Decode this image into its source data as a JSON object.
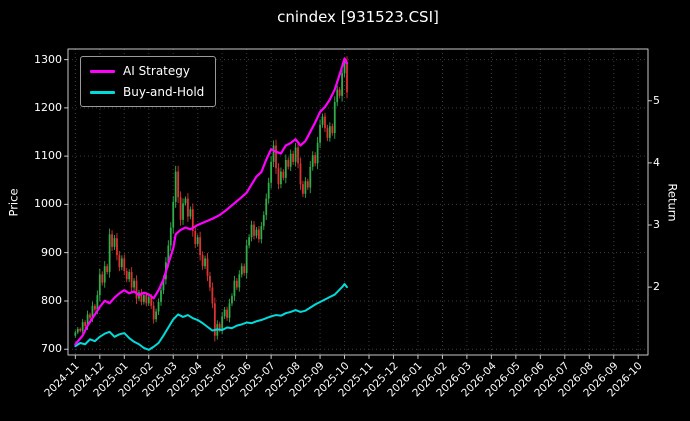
{
  "chart_data": {
    "type": "candlestick",
    "title": "cnindex [931523.CSI]",
    "ylabel_left": "Price",
    "ylabel_right": "Return",
    "x_range": [
      -0.3,
      23.4
    ],
    "x_ticks": {
      "labels": [
        "2024-11",
        "2024-12",
        "2025-01",
        "2025-02",
        "2025-03",
        "2025-04",
        "2025-05",
        "2025-06",
        "2025-07",
        "2025-08",
        "2025-09",
        "2025-10",
        "2025-11",
        "2025-12",
        "2026-01",
        "2026-02",
        "2026-03",
        "2026-04",
        "2026-05",
        "2026-06",
        "2026-07",
        "2026-08",
        "2026-09",
        "2026-10"
      ]
    },
    "price_axis": {
      "label": "Price",
      "range": [
        688,
        1322
      ],
      "ticks": [
        700,
        800,
        900,
        1000,
        1100,
        1200,
        1300
      ]
    },
    "return_axis": {
      "label": "Return",
      "range": [
        0.907,
        5.833
      ],
      "ticks": [
        2,
        3,
        4,
        5
      ]
    },
    "grid": {
      "show": true,
      "style": "dotted"
    },
    "legend_position": "upper-left",
    "colors": {
      "background": "#000000",
      "text": "#ffffff",
      "spine": "#c8c8c8",
      "grid": "#3c3c3c",
      "candle_up": "#2fae49",
      "candle_down": "#e03232",
      "ai_strategy": "#ff00ff",
      "buy_and_hold": "#00dcdc"
    },
    "candles": {
      "t_start": 0,
      "t_step": 0.1,
      "first_open": 728,
      "closes": [
        735,
        742,
        738,
        756,
        748,
        772,
        765,
        790,
        782,
        812,
        855,
        838,
        872,
        860,
        938,
        912,
        930,
        895,
        870,
        888,
        862,
        845,
        860,
        828,
        842,
        805,
        818,
        798,
        812,
        795,
        808,
        790,
        762,
        778,
        798,
        822,
        845,
        880,
        915,
        952,
        1005,
        1068,
        1015,
        968,
        1002,
        1012,
        975,
        990,
        945,
        918,
        932,
        895,
        872,
        888,
        852,
        828,
        795,
        728,
        752,
        740,
        768,
        782,
        765,
        795,
        810,
        842,
        828,
        855,
        872,
        858,
        915,
        932,
        958,
        935,
        948,
        928,
        955,
        978,
        1012,
        1045,
        1088,
        1122,
        1075,
        1042,
        1068,
        1055,
        1092,
        1078,
        1105,
        1088,
        1118,
        1085,
        1042,
        1022,
        1048,
        1035,
        1078,
        1102,
        1085,
        1128,
        1165,
        1182,
        1158,
        1138,
        1162,
        1148,
        1212,
        1238,
        1225,
        1272,
        1295,
        1232
      ]
    },
    "series": [
      {
        "name": "AI Strategy",
        "color": "#ff00ff",
        "axis": "return",
        "points": [
          [
            0,
            1.08
          ],
          [
            0.3,
            1.22
          ],
          [
            0.5,
            1.38
          ],
          [
            0.7,
            1.5
          ],
          [
            1,
            1.68
          ],
          [
            1.2,
            1.78
          ],
          [
            1.4,
            1.74
          ],
          [
            1.6,
            1.83
          ],
          [
            1.8,
            1.9
          ],
          [
            2,
            1.95
          ],
          [
            2.2,
            1.9
          ],
          [
            2.4,
            1.93
          ],
          [
            2.6,
            1.87
          ],
          [
            2.8,
            1.91
          ],
          [
            3,
            1.88
          ],
          [
            3.2,
            1.82
          ],
          [
            3.4,
            1.95
          ],
          [
            3.6,
            2.12
          ],
          [
            3.8,
            2.38
          ],
          [
            4,
            2.62
          ],
          [
            4.1,
            2.85
          ],
          [
            4.3,
            2.92
          ],
          [
            4.5,
            2.96
          ],
          [
            4.7,
            2.93
          ],
          [
            5,
            3.0
          ],
          [
            5.3,
            3.05
          ],
          [
            5.6,
            3.1
          ],
          [
            5.9,
            3.16
          ],
          [
            6.2,
            3.25
          ],
          [
            6.5,
            3.35
          ],
          [
            6.8,
            3.45
          ],
          [
            7,
            3.52
          ],
          [
            7.2,
            3.65
          ],
          [
            7.4,
            3.78
          ],
          [
            7.6,
            3.85
          ],
          [
            7.8,
            4.05
          ],
          [
            8,
            4.22
          ],
          [
            8.2,
            4.18
          ],
          [
            8.4,
            4.15
          ],
          [
            8.6,
            4.28
          ],
          [
            8.8,
            4.32
          ],
          [
            9,
            4.38
          ],
          [
            9.2,
            4.28
          ],
          [
            9.4,
            4.35
          ],
          [
            9.6,
            4.5
          ],
          [
            9.8,
            4.65
          ],
          [
            10,
            4.82
          ],
          [
            10.2,
            4.9
          ],
          [
            10.4,
            5.02
          ],
          [
            10.6,
            5.18
          ],
          [
            10.8,
            5.42
          ],
          [
            10.9,
            5.55
          ],
          [
            11,
            5.68
          ],
          [
            11.1,
            5.6
          ]
        ]
      },
      {
        "name": "Buy-and-Hold",
        "color": "#00dcdc",
        "axis": "return",
        "points": [
          [
            0,
            1.05
          ],
          [
            0.2,
            1.1
          ],
          [
            0.4,
            1.08
          ],
          [
            0.6,
            1.16
          ],
          [
            0.8,
            1.13
          ],
          [
            1,
            1.2
          ],
          [
            1.2,
            1.25
          ],
          [
            1.4,
            1.28
          ],
          [
            1.6,
            1.2
          ],
          [
            1.8,
            1.24
          ],
          [
            2,
            1.26
          ],
          [
            2.2,
            1.18
          ],
          [
            2.4,
            1.12
          ],
          [
            2.6,
            1.08
          ],
          [
            2.8,
            1.02
          ],
          [
            3,
            0.99
          ],
          [
            3.2,
            1.04
          ],
          [
            3.4,
            1.1
          ],
          [
            3.6,
            1.22
          ],
          [
            3.8,
            1.35
          ],
          [
            4,
            1.48
          ],
          [
            4.2,
            1.56
          ],
          [
            4.4,
            1.52
          ],
          [
            4.6,
            1.55
          ],
          [
            4.8,
            1.5
          ],
          [
            5,
            1.47
          ],
          [
            5.2,
            1.42
          ],
          [
            5.4,
            1.36
          ],
          [
            5.6,
            1.3
          ],
          [
            5.8,
            1.32
          ],
          [
            6,
            1.31
          ],
          [
            6.2,
            1.35
          ],
          [
            6.4,
            1.34
          ],
          [
            6.6,
            1.38
          ],
          [
            6.8,
            1.4
          ],
          [
            7,
            1.43
          ],
          [
            7.2,
            1.42
          ],
          [
            7.4,
            1.45
          ],
          [
            7.6,
            1.47
          ],
          [
            7.8,
            1.5
          ],
          [
            8,
            1.53
          ],
          [
            8.2,
            1.55
          ],
          [
            8.4,
            1.54
          ],
          [
            8.6,
            1.58
          ],
          [
            8.8,
            1.6
          ],
          [
            9,
            1.63
          ],
          [
            9.2,
            1.6
          ],
          [
            9.4,
            1.62
          ],
          [
            9.6,
            1.67
          ],
          [
            9.8,
            1.72
          ],
          [
            10,
            1.76
          ],
          [
            10.2,
            1.8
          ],
          [
            10.4,
            1.84
          ],
          [
            10.6,
            1.88
          ],
          [
            10.8,
            1.96
          ],
          [
            10.9,
            2.0
          ],
          [
            11,
            2.05
          ],
          [
            11.1,
            2.0
          ]
        ]
      }
    ]
  }
}
